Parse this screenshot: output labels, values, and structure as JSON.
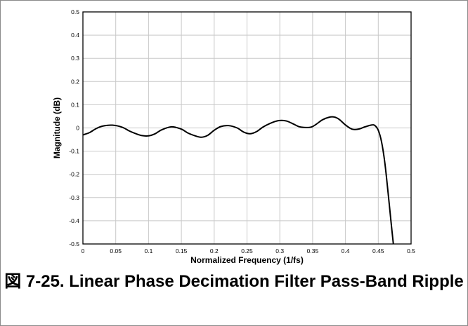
{
  "figure_caption": "図 7-25. Linear Phase Decimation Filter Pass-Band Ripple",
  "chart_data": {
    "type": "line",
    "title": "",
    "xlabel": "Normalized Frequency (1/fs)",
    "ylabel": "Magnitude (dB)",
    "xlim": [
      0,
      0.5
    ],
    "ylim": [
      -0.5,
      0.5
    ],
    "x_ticks": [
      "0",
      "0.05",
      "0.1",
      "0.15",
      "0.2",
      "0.25",
      "0.3",
      "0.35",
      "0.4",
      "0.45",
      "0.5"
    ],
    "y_ticks": [
      "0.5",
      "0.4",
      "0.3",
      "0.2",
      "0.1",
      "0",
      "-0.1",
      "-0.2",
      "-0.3",
      "-0.4",
      "-0.5"
    ],
    "grid": true,
    "series": [
      {
        "x": [
          0,
          0.01,
          0.02,
          0.03,
          0.045,
          0.06,
          0.07,
          0.08,
          0.09,
          0.1,
          0.11,
          0.12,
          0.135,
          0.15,
          0.16,
          0.17,
          0.18,
          0.19,
          0.2,
          0.21,
          0.222,
          0.235,
          0.245,
          0.255,
          0.265,
          0.275,
          0.29,
          0.3,
          0.31,
          0.32,
          0.33,
          0.34,
          0.348,
          0.355,
          0.365,
          0.375,
          0.383,
          0.39,
          0.4,
          0.41,
          0.42,
          0.43,
          0.44,
          0.445,
          0.45,
          0.455,
          0.46,
          0.465,
          0.47,
          0.473
        ],
        "y": [
          -0.03,
          -0.02,
          -0.003,
          0.008,
          0.012,
          0.003,
          -0.012,
          -0.024,
          -0.033,
          -0.034,
          -0.025,
          -0.008,
          0.005,
          -0.005,
          -0.022,
          -0.033,
          -0.04,
          -0.032,
          -0.01,
          0.006,
          0.01,
          0.0,
          -0.018,
          -0.025,
          -0.015,
          0.005,
          0.025,
          0.032,
          0.03,
          0.018,
          0.005,
          0.002,
          0.004,
          0.015,
          0.035,
          0.046,
          0.047,
          0.038,
          0.013,
          -0.005,
          -0.005,
          0.005,
          0.013,
          0.01,
          -0.01,
          -0.06,
          -0.15,
          -0.28,
          -0.42,
          -0.5
        ]
      }
    ]
  }
}
